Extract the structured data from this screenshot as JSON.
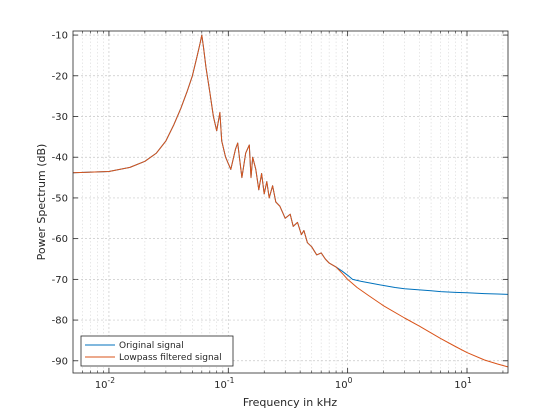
{
  "chart_data": {
    "type": "line",
    "title": "",
    "xlabel": "Frequency in kHz",
    "ylabel": "Power Spectrum (dB)",
    "xscale": "log",
    "xlim": [
      0.005,
      22.05
    ],
    "ylim": [
      -93,
      -9
    ],
    "x_ticks": [
      {
        "value": 0.01,
        "base": "10",
        "exp": "-2"
      },
      {
        "value": 0.1,
        "base": "10",
        "exp": "-1"
      },
      {
        "value": 1,
        "base": "10",
        "exp": "0"
      },
      {
        "value": 10,
        "base": "10",
        "exp": "1"
      }
    ],
    "y_ticks": [
      -90,
      -80,
      -70,
      -60,
      -50,
      -40,
      -30,
      -20,
      -10
    ],
    "y_tick_labels": [
      "-90",
      "-80",
      "-70",
      "-60",
      "-50",
      "-40",
      "-30",
      "-20",
      "-10"
    ],
    "grid": true,
    "minor_grid": true,
    "legend_position": "bottom-left",
    "series": [
      {
        "name": "Original signal",
        "color": "#0072BD",
        "x": [
          0.005,
          0.01,
          0.015,
          0.02,
          0.025,
          0.03,
          0.035,
          0.04,
          0.045,
          0.05,
          0.055,
          0.058,
          0.06,
          0.062,
          0.065,
          0.07,
          0.075,
          0.08,
          0.085,
          0.088,
          0.095,
          0.105,
          0.115,
          0.12,
          0.125,
          0.13,
          0.14,
          0.15,
          0.155,
          0.16,
          0.17,
          0.18,
          0.19,
          0.2,
          0.21,
          0.22,
          0.235,
          0.25,
          0.27,
          0.3,
          0.33,
          0.35,
          0.38,
          0.41,
          0.43,
          0.46,
          0.5,
          0.55,
          0.6,
          0.65,
          0.7,
          0.8,
          0.9,
          1.0,
          1.1,
          1.3,
          1.6,
          2.0,
          2.5,
          3.0,
          4.0,
          5.0,
          6.0,
          8.0,
          10.0,
          14.0,
          18.0,
          22.0
        ],
        "y": [
          -43.8,
          -43.5,
          -42.5,
          -41.0,
          -39.0,
          -36.0,
          -32.0,
          -28.0,
          -24.0,
          -20.0,
          -15.0,
          -12.0,
          -10.0,
          -13.0,
          -18.0,
          -24.0,
          -30.0,
          -33.5,
          -29.0,
          -36.0,
          -40.0,
          -43.0,
          -38.0,
          -36.5,
          -41.0,
          -45.0,
          -39.0,
          -37.0,
          -45.0,
          -40.0,
          -43.0,
          -48.0,
          -44.0,
          -49.0,
          -46.0,
          -50.0,
          -47.0,
          -51.0,
          -52.0,
          -55.0,
          -54.0,
          -57.0,
          -56.0,
          -59.0,
          -58.0,
          -61.0,
          -62.0,
          -64.0,
          -63.5,
          -65.0,
          -66.0,
          -67.0,
          -68.0,
          -69.0,
          -70.0,
          -70.5,
          -71.0,
          -71.5,
          -72.0,
          -72.3,
          -72.6,
          -72.8,
          -73.0,
          -73.2,
          -73.3,
          -73.5,
          -73.6,
          -73.7
        ]
      },
      {
        "name": "Lowpass filtered signal",
        "color": "#D95319",
        "x": [
          0.005,
          0.01,
          0.015,
          0.02,
          0.025,
          0.03,
          0.035,
          0.04,
          0.045,
          0.05,
          0.055,
          0.058,
          0.06,
          0.062,
          0.065,
          0.07,
          0.075,
          0.08,
          0.085,
          0.088,
          0.095,
          0.105,
          0.115,
          0.12,
          0.125,
          0.13,
          0.14,
          0.15,
          0.155,
          0.16,
          0.17,
          0.18,
          0.19,
          0.2,
          0.21,
          0.22,
          0.235,
          0.25,
          0.27,
          0.3,
          0.33,
          0.35,
          0.38,
          0.41,
          0.43,
          0.46,
          0.5,
          0.55,
          0.6,
          0.65,
          0.7,
          0.8,
          0.9,
          1.0,
          1.2,
          1.5,
          2.0,
          3.0,
          4.0,
          6.0,
          8.0,
          10.0,
          14.0,
          18.0,
          22.0
        ],
        "y": [
          -43.8,
          -43.5,
          -42.5,
          -41.0,
          -39.0,
          -36.0,
          -32.0,
          -28.0,
          -24.0,
          -20.0,
          -15.0,
          -12.0,
          -10.0,
          -13.0,
          -18.0,
          -24.0,
          -30.0,
          -33.5,
          -29.0,
          -36.0,
          -40.0,
          -43.0,
          -38.0,
          -36.5,
          -41.0,
          -45.0,
          -39.0,
          -37.0,
          -45.0,
          -40.0,
          -43.0,
          -48.0,
          -44.0,
          -49.0,
          -46.0,
          -50.0,
          -47.0,
          -51.0,
          -52.0,
          -55.0,
          -54.0,
          -57.0,
          -56.0,
          -59.0,
          -58.0,
          -61.0,
          -62.0,
          -64.0,
          -63.5,
          -65.0,
          -66.0,
          -67.0,
          -68.5,
          -70.0,
          -72.0,
          -74.0,
          -76.5,
          -79.5,
          -81.5,
          -84.5,
          -86.5,
          -88.0,
          -89.8,
          -90.8,
          -91.5
        ]
      }
    ]
  }
}
